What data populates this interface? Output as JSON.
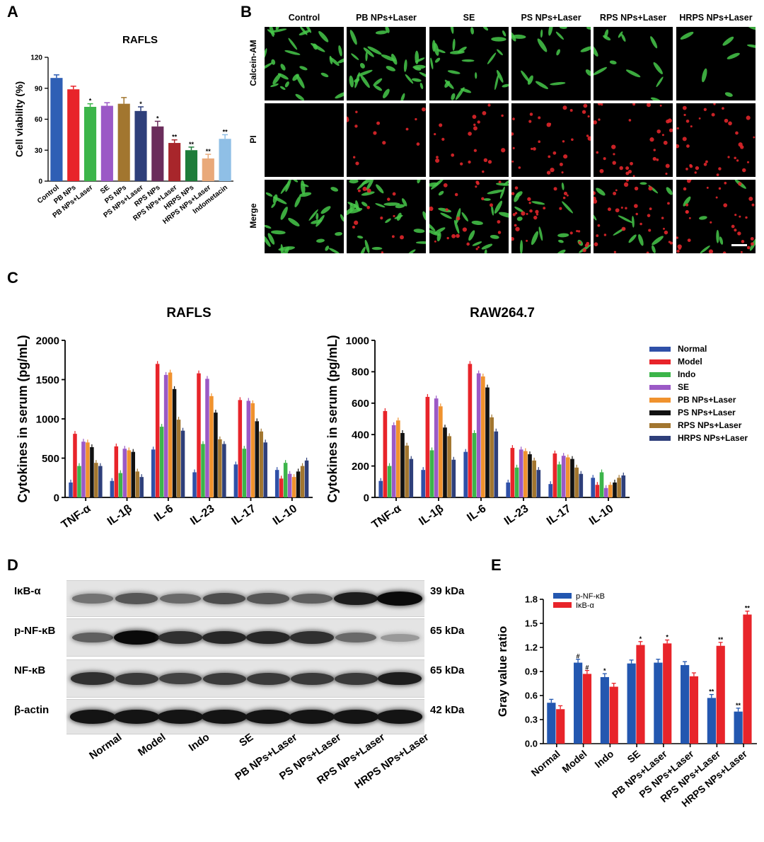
{
  "panels": {
    "a": "A",
    "b": "B",
    "c": "C",
    "d": "D",
    "e": "E"
  },
  "colors": {
    "normal": "#2f50a8",
    "model": "#e8242a",
    "indo": "#3cb54a",
    "se": "#9b59c6",
    "pb": "#f0922e",
    "ps": "#111111",
    "rps": "#a2762f",
    "hrps": "#2e3f7a"
  },
  "chart_data": [
    {
      "type": "bar",
      "id": "A",
      "title": "RAFLS",
      "ylabel": "Cell viability (%)",
      "ylim": [
        0,
        120
      ],
      "yticks": [
        0,
        30,
        60,
        90,
        120
      ],
      "categories": [
        "Control",
        "PB NPs",
        "PB NPs+Laser",
        "SE",
        "PS NPs",
        "PS NPs+Laser",
        "RPS NPs",
        "RPS NPs+Laser",
        "HRPS NPs",
        "HRPS NPs+Laser",
        "Indometacin"
      ],
      "values": [
        100,
        89,
        72,
        73,
        75,
        68,
        53,
        37,
        30,
        22,
        41
      ],
      "errors": [
        3,
        3,
        3,
        3,
        6,
        4,
        5,
        3,
        3,
        4,
        4
      ],
      "bar_colors": [
        "#2f5fb5",
        "#e8242a",
        "#3cb54a",
        "#9b59c6",
        "#a2762f",
        "#2e3f7a",
        "#6b2d5c",
        "#a8262b",
        "#1e7d3a",
        "#e9a97a",
        "#8fbfe6"
      ],
      "sig": [
        "",
        "",
        "*",
        "",
        "",
        "*",
        "*",
        "**",
        "**",
        "**",
        "**"
      ]
    },
    {
      "type": "bar",
      "id": "C-left",
      "title": "RAFLS",
      "ylabel": "Cytokines in serum (pg/mL)",
      "ylim": [
        0,
        2000
      ],
      "yticks": [
        0,
        500,
        1000,
        1500,
        2000
      ],
      "categories": [
        "TNF-α",
        "IL-1β",
        "IL-6",
        "IL-23",
        "IL-17",
        "IL-10"
      ],
      "series": [
        {
          "name": "Normal",
          "values": [
            190,
            210,
            610,
            320,
            420,
            350
          ]
        },
        {
          "name": "Model",
          "values": [
            810,
            650,
            1700,
            1580,
            1240,
            240
          ]
        },
        {
          "name": "Indo",
          "values": [
            400,
            310,
            900,
            680,
            620,
            440
          ]
        },
        {
          "name": "SE",
          "values": [
            710,
            620,
            1560,
            1510,
            1230,
            300
          ]
        },
        {
          "name": "PB NPs+Laser",
          "values": [
            700,
            600,
            1590,
            1290,
            1200,
            260
          ]
        },
        {
          "name": "PS NPs+Laser",
          "values": [
            640,
            580,
            1380,
            1080,
            970,
            330
          ]
        },
        {
          "name": "RPS NPs+Laser",
          "values": [
            440,
            330,
            990,
            740,
            840,
            400
          ]
        },
        {
          "name": "HRPS NPs+Laser",
          "values": [
            400,
            260,
            850,
            680,
            700,
            470
          ]
        }
      ]
    },
    {
      "type": "bar",
      "id": "C-right",
      "title": "RAW264.7",
      "ylabel": "Cytokines in serum (pg/mL)",
      "ylim": [
        0,
        1000
      ],
      "yticks": [
        0,
        200,
        400,
        600,
        800,
        1000
      ],
      "categories": [
        "TNF-α",
        "IL-1β",
        "IL-6",
        "IL-23",
        "IL-17",
        "IL-10"
      ],
      "series": [
        {
          "name": "Normal",
          "values": [
            105,
            175,
            290,
            95,
            85,
            125
          ]
        },
        {
          "name": "Model",
          "values": [
            550,
            640,
            850,
            315,
            280,
            80
          ]
        },
        {
          "name": "Indo",
          "values": [
            200,
            300,
            410,
            190,
            210,
            160
          ]
        },
        {
          "name": "SE",
          "values": [
            460,
            630,
            790,
            305,
            265,
            60
          ]
        },
        {
          "name": "PB NPs+Laser",
          "values": [
            490,
            580,
            770,
            295,
            255,
            80
          ]
        },
        {
          "name": "PS NPs+Laser",
          "values": [
            410,
            445,
            700,
            275,
            245,
            95
          ]
        },
        {
          "name": "RPS NPs+Laser",
          "values": [
            330,
            390,
            510,
            235,
            190,
            125
          ]
        },
        {
          "name": "HRPS NPs+Laser",
          "values": [
            245,
            240,
            420,
            175,
            150,
            140
          ]
        }
      ]
    },
    {
      "type": "bar",
      "id": "E",
      "ylabel": "Gray value ratio",
      "ylim": [
        0,
        1.8
      ],
      "yticks": [
        "0.0",
        "0.3",
        "0.6",
        "0.9",
        "1.2",
        "1.5",
        "1.8"
      ],
      "categories": [
        "Normal",
        "Model",
        "Indo",
        "SE",
        "PB NPs+Laser",
        "PS NPs+Laser",
        "RPS NPs+Laser",
        "HRPS NPs+Laser"
      ],
      "series": [
        {
          "name": "p-NF-κB",
          "values": [
            0.51,
            1.01,
            0.83,
            1.0,
            1.01,
            0.98,
            0.57,
            0.4
          ],
          "sig": [
            "",
            "#",
            "*",
            "",
            "",
            "",
            "**",
            "**"
          ]
        },
        {
          "name": "IκB-α",
          "values": [
            0.43,
            0.87,
            0.71,
            1.23,
            1.25,
            0.84,
            1.22,
            1.61
          ],
          "sig": [
            "",
            "#",
            "",
            "*",
            "*",
            "",
            "**",
            "**"
          ]
        }
      ]
    }
  ],
  "legend_c": [
    "Normal",
    "Model",
    "Indo",
    "SE",
    "PB NPs+Laser",
    "PS NPs+Laser",
    "RPS NPs+Laser",
    "HRPS NPs+Laser"
  ],
  "microscopy": {
    "columns": [
      "Control",
      "PB NPs+Laser",
      "SE",
      "PS NPs+Laser",
      "RPS NPs+Laser",
      "HRPS NPs+Laser"
    ],
    "rows": [
      "Calcein-AM",
      "PI",
      "Merge"
    ],
    "green_level": [
      0.9,
      0.85,
      0.75,
      0.45,
      0.35,
      0.2
    ],
    "red_level": [
      0.0,
      0.35,
      0.55,
      0.75,
      0.85,
      0.9
    ]
  },
  "western": {
    "rows": [
      {
        "label": "IκB-α",
        "kda": "39 kDa",
        "intensity": [
          0.45,
          0.6,
          0.5,
          0.65,
          0.6,
          0.55,
          0.9,
          1.0
        ]
      },
      {
        "label": "p-NF-κB",
        "kda": "65 kDa",
        "intensity": [
          0.55,
          1.0,
          0.8,
          0.85,
          0.85,
          0.8,
          0.5,
          0.25
        ]
      },
      {
        "label": "NF-κB",
        "kda": "65 kDa",
        "intensity": [
          0.8,
          0.75,
          0.7,
          0.75,
          0.75,
          0.75,
          0.75,
          0.9
        ]
      },
      {
        "label": "β-actin",
        "kda": "42 kDa",
        "intensity": [
          0.95,
          0.95,
          0.95,
          0.95,
          0.95,
          0.95,
          0.95,
          0.95
        ]
      }
    ],
    "lanes": [
      "Normal",
      "Model",
      "Indo",
      "SE",
      "PB NPs+Laser",
      "PS NPs+Laser",
      "RPS NPs+Laser",
      "HRPS NPs+Laser"
    ]
  }
}
